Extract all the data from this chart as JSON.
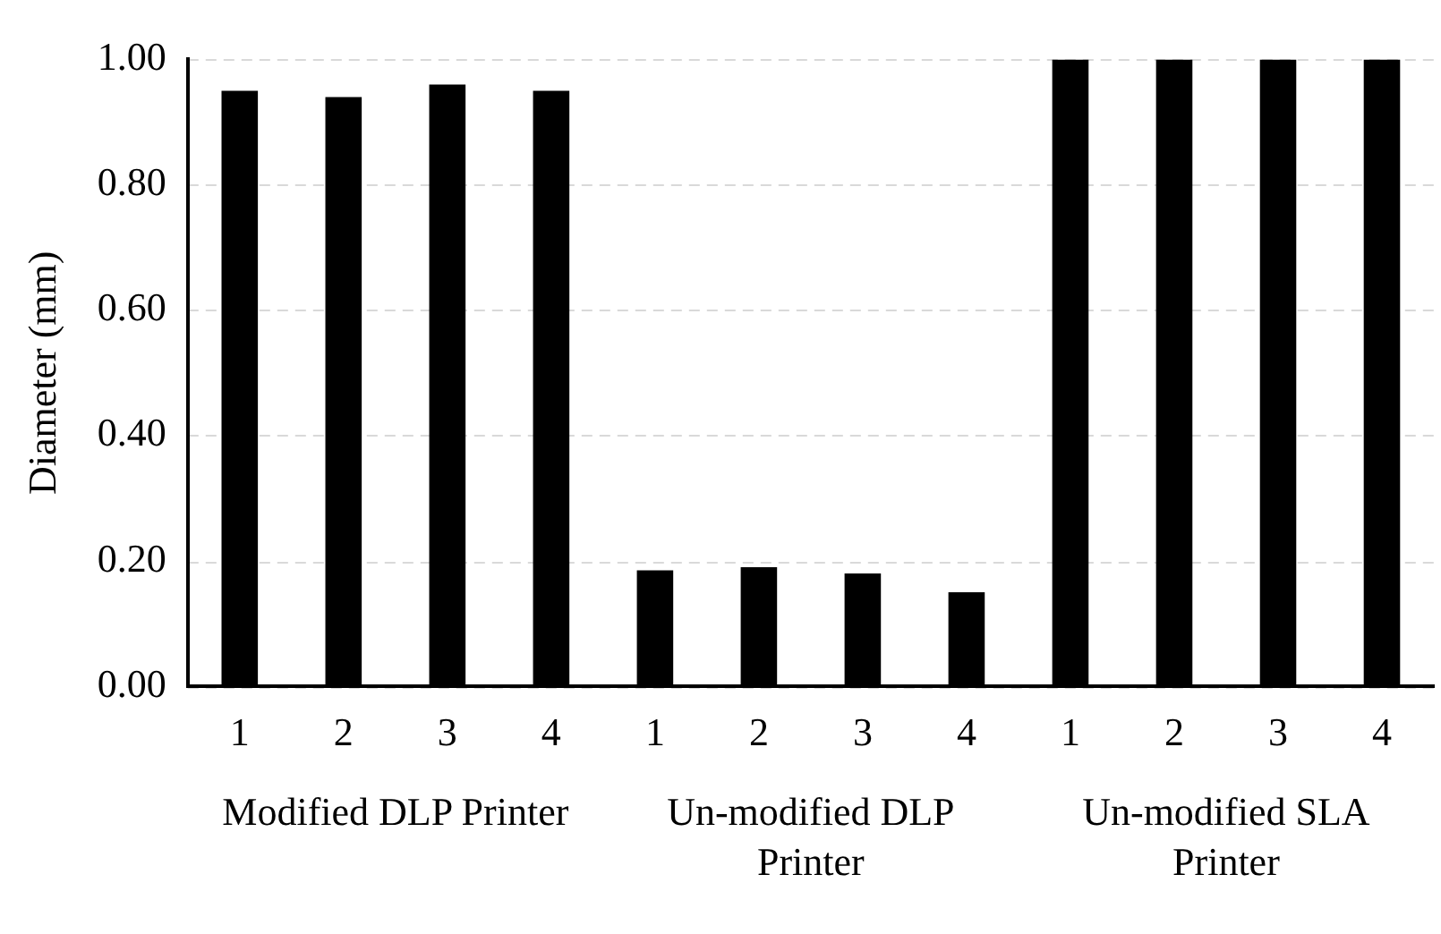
{
  "chart_data": {
    "type": "bar",
    "ylabel": "Diameter (mm)",
    "categories": [
      "1",
      "2",
      "3",
      "4",
      "1",
      "2",
      "3",
      "4",
      "1",
      "2",
      "3",
      "4"
    ],
    "values": [
      0.95,
      0.94,
      0.96,
      0.95,
      0.185,
      0.19,
      0.18,
      0.15,
      1.0,
      1.0,
      1.0,
      1.0
    ],
    "color": "#000000",
    "ylim": [
      0,
      1
    ],
    "yticks": [
      {
        "value": 0,
        "label": "0.00"
      },
      {
        "value": 0.2,
        "label": "0.20"
      },
      {
        "value": 0.4,
        "label": "0.40"
      },
      {
        "value": 0.6,
        "label": "0.60"
      },
      {
        "value": 0.8,
        "label": "0.80"
      },
      {
        "value": 1,
        "label": "1.00"
      }
    ],
    "grid": "y",
    "legend": false,
    "annotations": [
      "Modified DLP Printer",
      "Un-modified DLP Printer",
      "Un-modified SLA Printer"
    ]
  }
}
